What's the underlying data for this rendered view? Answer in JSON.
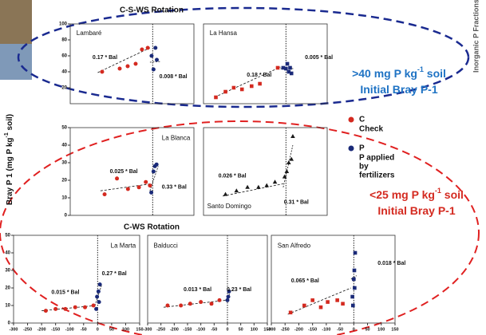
{
  "figure": {
    "titles": [
      "C-S-WS Rotation",
      "C-WS Rotation"
    ],
    "y_label": [
      "Bray P 1 (mg P kg",
      "-1",
      " soil)"
    ],
    "right_label": "Inorganic P Fractions",
    "legend": [
      {
        "name": "C",
        "color": "#d42a20",
        "lines": [
          "Check"
        ]
      },
      {
        "name": "P",
        "color": "#1a2a78",
        "lines": [
          "P applied",
          "by",
          "fertilizers"
        ]
      }
    ],
    "notes": [
      {
        "color": "#1f73c4",
        "lines": [
          [
            ">40 mg P kg",
            "-1",
            " soil"
          ],
          [
            "Initial Bray P-1"
          ]
        ]
      },
      {
        "color": "#d42a20",
        "lines": [
          [
            "<25 mg P kg",
            "-1",
            " soil"
          ],
          [
            "Initial Bray P-1"
          ]
        ]
      }
    ]
  },
  "chart_data": [
    {
      "type": "scatter",
      "label": "Lambaré",
      "marker": "circle",
      "xlim": [
        -300,
        150
      ],
      "ylim": [
        0,
        100
      ],
      "yticks": [
        20,
        40,
        60,
        80,
        100
      ],
      "vline": 0,
      "series": [
        {
          "color": "#d42a20",
          "x": [
            -184,
            -120,
            -91,
            -62,
            -39,
            -18
          ],
          "values": [
            40,
            44,
            47,
            50,
            68,
            70
          ]
        },
        {
          "color": "#1a2a78",
          "x": [
            -4,
            3,
            10,
            15
          ],
          "values": [
            60,
            43,
            70,
            55
          ]
        }
      ],
      "trends": [
        {
          "x": [
            -200,
            -10
          ],
          "values": [
            39,
            70
          ]
        },
        {
          "x": [
            -10,
            30
          ],
          "values": [
            52,
            53
          ]
        }
      ],
      "annotations": [
        "0.17 * Bal",
        "0.008 * Bal"
      ]
    },
    {
      "type": "scatter",
      "label": "La Hansa",
      "marker": "square",
      "xlim": [
        -300,
        150
      ],
      "ylim": [
        0,
        100
      ],
      "vline": 0,
      "series": [
        {
          "color": "#d42a20",
          "x": [
            -255,
            -220,
            -190,
            -160,
            -125,
            -95,
            -30
          ],
          "values": [
            8,
            15,
            20,
            18,
            22,
            25,
            45
          ]
        },
        {
          "color": "#1a2a78",
          "x": [
            -10,
            0,
            5,
            10,
            15,
            20
          ],
          "values": [
            45,
            44,
            50,
            40,
            45,
            38
          ]
        }
      ],
      "trends": [
        {
          "x": [
            -260,
            -20
          ],
          "values": [
            8,
            46
          ]
        },
        {
          "x": [
            -20,
            30
          ],
          "values": [
            44,
            44
          ]
        }
      ],
      "annotations": [
        "0.18 * Bal",
        "0.005 * Bal"
      ]
    },
    {
      "type": "scatter",
      "label": "La Blanca",
      "marker": "circle",
      "xlim": [
        -300,
        150
      ],
      "ylim": [
        0,
        50
      ],
      "yticks": [
        0,
        10,
        20,
        30,
        40,
        50
      ],
      "vline": 0,
      "series": [
        {
          "color": "#d42a20",
          "x": [
            -175,
            -130,
            -90,
            -50,
            -25,
            -10
          ],
          "values": [
            12,
            21,
            15,
            16,
            19,
            17
          ]
        },
        {
          "color": "#1a2a78",
          "x": [
            -5,
            3,
            8,
            14
          ],
          "values": [
            13,
            25,
            28,
            29
          ]
        }
      ],
      "trends": [
        {
          "x": [
            -190,
            -5
          ],
          "values": [
            14,
            18
          ]
        },
        {
          "x": [
            -10,
            20
          ],
          "values": [
            14,
            28
          ]
        }
      ],
      "annotations": [
        "0.025 * Bal",
        "0.33 * Bal"
      ]
    },
    {
      "type": "scatter",
      "label": "Santo Domingo",
      "marker": "triangle",
      "xlim": [
        -300,
        150
      ],
      "ylim": [
        0,
        50
      ],
      "vline": 0,
      "series": [
        {
          "color": "#1a1a1a",
          "x": [
            -220,
            -180,
            -140,
            -100,
            -70,
            -40
          ],
          "values": [
            12,
            14,
            16,
            16,
            17,
            19
          ]
        },
        {
          "color": "#1a1a1a",
          "x": [
            -5,
            3,
            10,
            20,
            25
          ],
          "values": [
            22,
            25,
            30,
            32,
            45
          ]
        }
      ],
      "trends": [
        {
          "x": [
            -230,
            -10
          ],
          "values": [
            11,
            18
          ]
        },
        {
          "x": [
            -10,
            25
          ],
          "values": [
            16,
            40
          ]
        }
      ],
      "annotations": [
        "0.026 * Bal",
        "0.31 * Bal"
      ]
    },
    {
      "type": "scatter",
      "label": "La Marta",
      "marker": "circle",
      "xlim": [
        -300,
        150
      ],
      "ylim": [
        0,
        50
      ],
      "yticks": [
        0,
        10,
        20,
        30,
        40,
        50
      ],
      "xticks": [
        -300,
        -250,
        -200,
        -150,
        -100,
        -50,
        0,
        50,
        100,
        150
      ],
      "vline": 0,
      "series": [
        {
          "color": "#d42a20",
          "x": [
            -185,
            -150,
            -115,
            -80,
            -45,
            -15
          ],
          "values": [
            7,
            8,
            8,
            9,
            9,
            10
          ]
        },
        {
          "color": "#1a2a78",
          "x": [
            -5,
            -2,
            3,
            5,
            8
          ],
          "values": [
            8,
            15,
            18,
            12,
            22
          ]
        }
      ],
      "trends": [
        {
          "x": [
            -200,
            -5
          ],
          "values": [
            7,
            10
          ]
        },
        {
          "x": [
            -10,
            15
          ],
          "values": [
            10,
            22
          ]
        }
      ],
      "annotations": [
        "0.015 * Bal",
        "0.27 * Bal"
      ]
    },
    {
      "type": "scatter",
      "label": "Balducci",
      "marker": "circle",
      "xlim": [
        -300,
        150
      ],
      "ylim": [
        0,
        50
      ],
      "xticks": [
        -300,
        -250,
        -200,
        -150,
        -100,
        -50,
        0,
        50,
        100,
        150
      ],
      "vline": 0,
      "series": [
        {
          "color": "#d42a20",
          "x": [
            -225,
            -175,
            -140,
            -100,
            -60,
            -30
          ],
          "values": [
            10,
            10,
            11,
            12,
            11,
            13
          ]
        },
        {
          "color": "#1a2a78",
          "x": [
            0,
            3,
            6
          ],
          "values": [
            13,
            15,
            18
          ]
        }
      ],
      "trends": [
        {
          "x": [
            -240,
            -5
          ],
          "values": [
            9,
            13
          ]
        },
        {
          "x": [
            -5,
            10
          ],
          "values": [
            13,
            17
          ]
        }
      ],
      "annotations": [
        "0.013 * Bal",
        "0.23 * Bal"
      ]
    },
    {
      "type": "scatter",
      "label": "San Alfredo",
      "marker": "square",
      "xlim": [
        -300,
        150
      ],
      "ylim": [
        0,
        50
      ],
      "xticks": [
        -300,
        -250,
        -200,
        -150,
        -100,
        -50,
        0,
        50,
        100,
        150
      ],
      "vline": 0,
      "series": [
        {
          "color": "#d42a20",
          "x": [
            -230,
            -180,
            -150,
            -120,
            -95,
            -60,
            -40
          ],
          "values": [
            6,
            10,
            13,
            9,
            12,
            13,
            11
          ]
        },
        {
          "color": "#1a2a78",
          "x": [
            -5,
            0,
            2,
            5,
            3,
            -3
          ],
          "values": [
            15,
            25,
            30,
            40,
            20,
            10
          ]
        }
      ],
      "trends": [
        {
          "x": [
            -240,
            -10
          ],
          "values": [
            5,
            20
          ]
        },
        {
          "x": [
            -10,
            10
          ],
          "values": [
            25,
            27
          ]
        }
      ],
      "annotations": [
        "0.065 * Bal",
        "0.018 * Bal"
      ]
    }
  ]
}
